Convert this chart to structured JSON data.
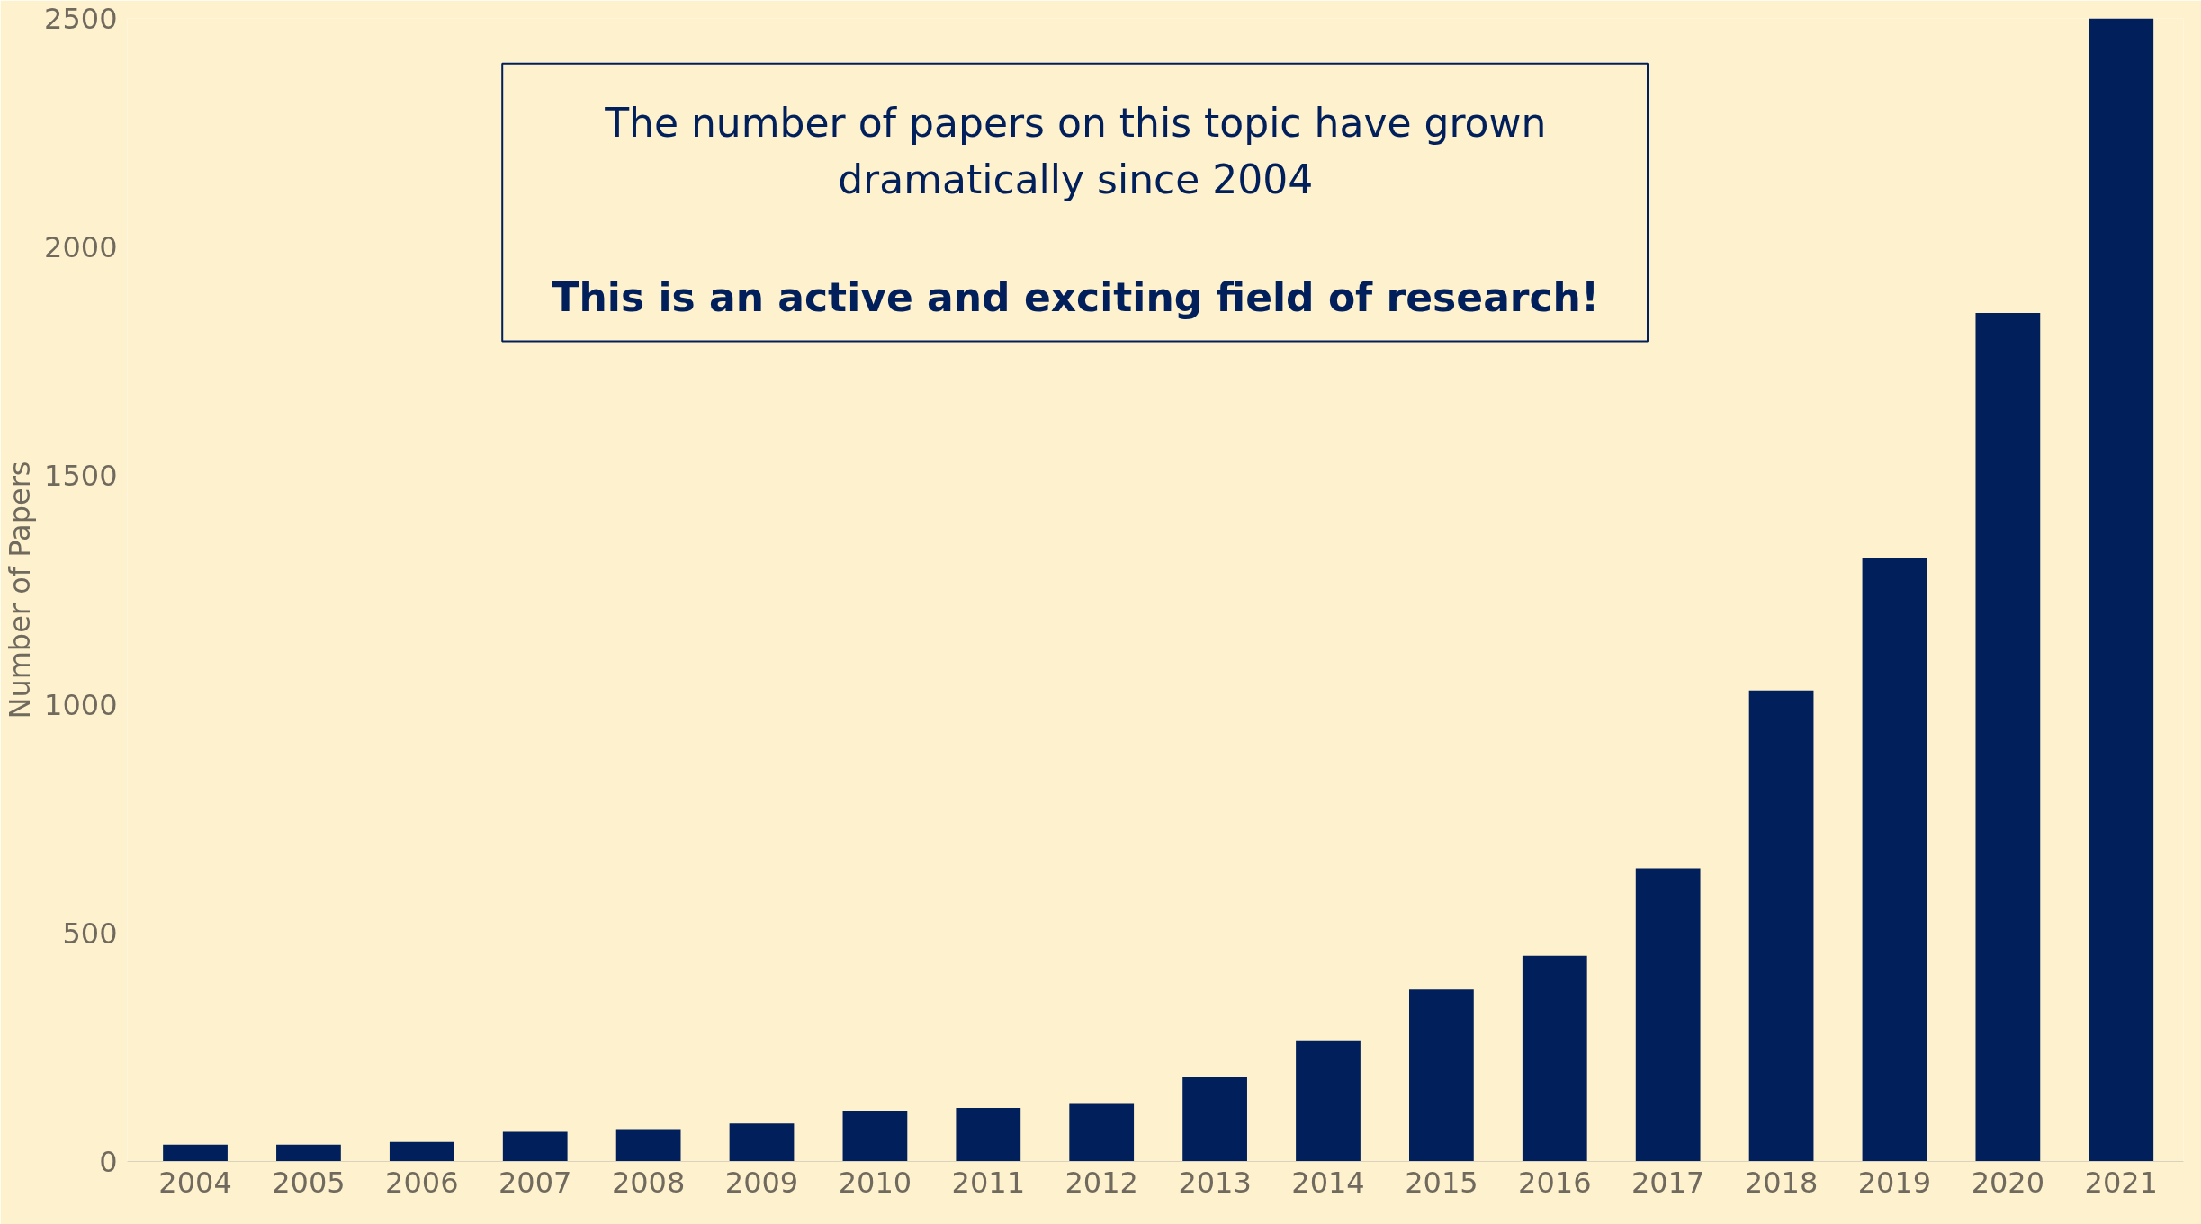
{
  "chart_data": {
    "type": "bar",
    "ylabel": "Number of Papers",
    "categories": [
      "2004",
      "2005",
      "2006",
      "2007",
      "2008",
      "2009",
      "2010",
      "2011",
      "2012",
      "2013",
      "2014",
      "2015",
      "2016",
      "2017",
      "2018",
      "2019",
      "2020",
      "2021"
    ],
    "values": [
      37,
      37,
      43,
      65,
      71,
      83,
      111,
      117,
      126,
      185,
      265,
      376,
      450,
      641,
      1030,
      1319,
      1856,
      2500
    ],
    "color": "#001f5b",
    "ylim": [
      0,
      2500
    ],
    "yticks": [
      0,
      500,
      1000,
      1500,
      2000,
      2500
    ],
    "grid": false,
    "annotations": [
      "The number of papers on this topic have grown\ndramatically since 2004",
      "This is an active and exciting field of research!"
    ]
  }
}
